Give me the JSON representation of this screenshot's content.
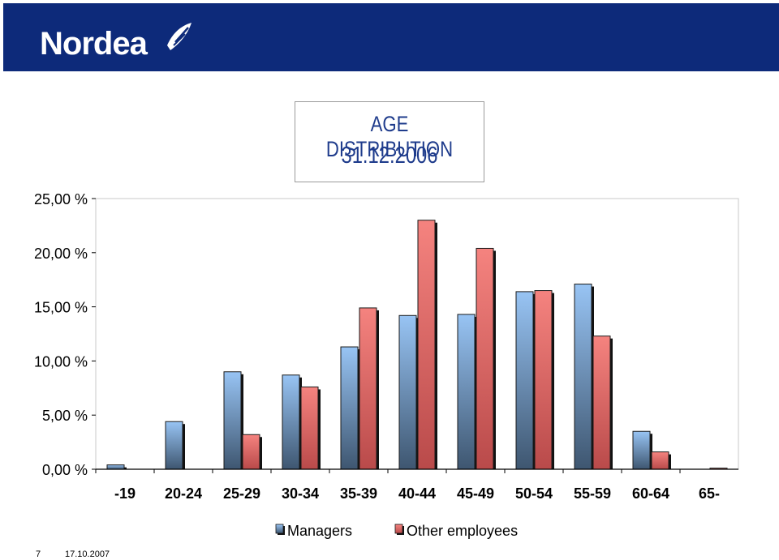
{
  "brand": {
    "name": "Nordea",
    "header_color": "#0d2a7a"
  },
  "title_box": {
    "line1": "AGE DISTRIBUTION",
    "line2": "31.12.2006"
  },
  "footer": {
    "page_number": "7",
    "date": "17.10.2007"
  },
  "chart_data": {
    "type": "bar",
    "categories": [
      "-19",
      "20-24",
      "25-29",
      "30-34",
      "35-39",
      "40-44",
      "45-49",
      "50-54",
      "55-59",
      "60-64",
      "65-"
    ],
    "series": [
      {
        "name": "Managers",
        "values": [
          0.4,
          4.4,
          9.0,
          8.7,
          11.3,
          14.2,
          14.3,
          16.4,
          17.1,
          3.5,
          0.0
        ],
        "color": "#8fb8ec"
      },
      {
        "name": "Other employees",
        "values": [
          0.0,
          0.0,
          3.2,
          7.6,
          14.9,
          23.0,
          20.4,
          16.5,
          12.3,
          1.6,
          0.1
        ],
        "color": "#ef7a78"
      }
    ],
    "title": "",
    "xlabel": "",
    "ylabel": "",
    "ylim": [
      0,
      25
    ],
    "yticks": [
      0,
      5,
      10,
      15,
      20,
      25
    ],
    "ytick_labels": [
      "0,00 %",
      "5,00 %",
      "10,00 %",
      "15,00 %",
      "20,00 %",
      "25,00 %"
    ],
    "grid": false,
    "legend_position": "bottom-center"
  }
}
